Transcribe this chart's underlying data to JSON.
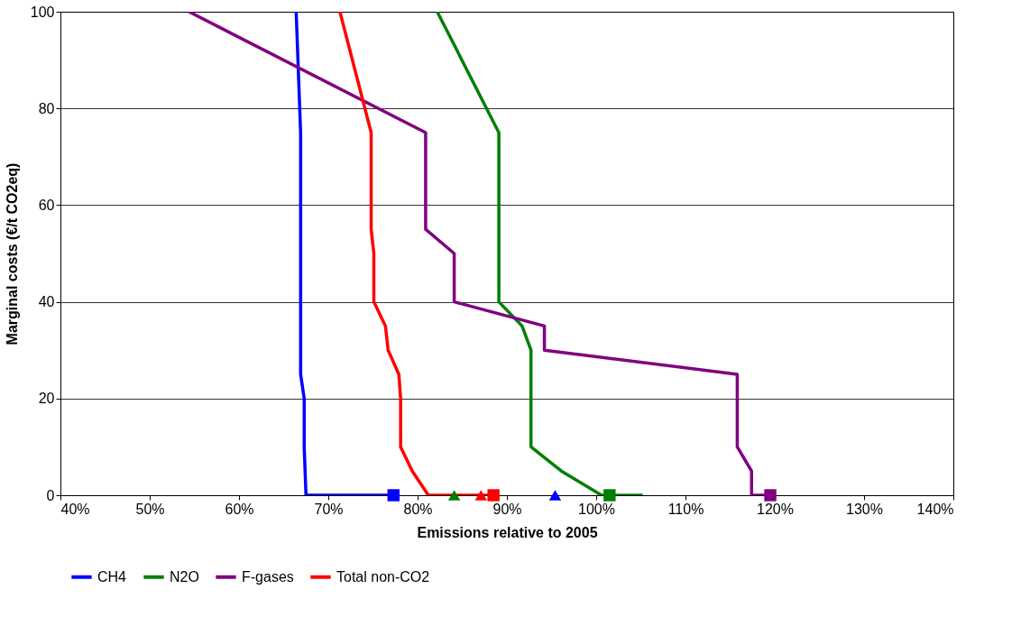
{
  "chart_data": {
    "type": "line",
    "xlabel": "Emissions relative to 2005",
    "ylabel": "Marginal costs (€/t CO2eq)",
    "xlim": [
      40,
      140
    ],
    "xticks": [
      {
        "value": 40,
        "label": "40%"
      },
      {
        "value": 50,
        "label": "50%"
      },
      {
        "value": 60,
        "label": "60%"
      },
      {
        "value": 70,
        "label": "70%"
      },
      {
        "value": 80,
        "label": "80%"
      },
      {
        "value": 90,
        "label": "90%"
      },
      {
        "value": 100,
        "label": "100%"
      },
      {
        "value": 110,
        "label": "110%"
      },
      {
        "value": 120,
        "label": "120%"
      },
      {
        "value": 130,
        "label": "130%"
      },
      {
        "value": 140,
        "label": "140%"
      }
    ],
    "ylim": [
      0,
      100
    ],
    "yticks": [
      0,
      20,
      40,
      60,
      80,
      100
    ],
    "grid": "y",
    "legend": "bottom",
    "marker": "none",
    "series": [
      {
        "name": "CH4",
        "color": "#0000ff",
        "x": [
          66.4,
          66.9,
          66.9,
          67.3,
          67.3,
          67.5,
          77.3
        ],
        "values": [
          100,
          75,
          25,
          20,
          10,
          0,
          0
        ]
      },
      {
        "name": "N2O",
        "color": "#008000",
        "x": [
          82.2,
          89.1,
          89.1,
          91.7,
          92.7,
          92.7,
          96.1,
          100.6,
          105.2
        ],
        "values": [
          100,
          75,
          40,
          35,
          30,
          10,
          5,
          0,
          0
        ]
      },
      {
        "name": "F-gases",
        "color": "#800080",
        "x": [
          54.4,
          80.9,
          80.9,
          84.1,
          84.1,
          94.2,
          94.2,
          115.8,
          115.8,
          117.4,
          117.4,
          119.5
        ],
        "values": [
          100,
          75,
          55,
          50,
          40,
          35,
          30,
          25,
          10,
          5,
          0,
          0
        ]
      },
      {
        "name": "Total non-CO2",
        "color": "#ff0000",
        "x": [
          71.3,
          74.8,
          74.8,
          75.1,
          75.1,
          76.4,
          76.7,
          77.9,
          78.1,
          78.1,
          79.4,
          81.2,
          88.5
        ],
        "values": [
          100,
          75,
          55,
          50,
          40,
          35,
          30,
          25,
          20,
          10,
          5,
          0,
          0
        ]
      },
      {
        "type": "scatter",
        "marker": "square",
        "color": "#0000ff",
        "x": [
          77.3
        ],
        "values": [
          0
        ]
      },
      {
        "type": "scatter",
        "marker": "triangle",
        "color": "#0000ff",
        "x": [
          95.4
        ],
        "values": [
          0
        ]
      },
      {
        "type": "scatter",
        "marker": "square",
        "color": "#008000",
        "x": [
          101.5
        ],
        "values": [
          0
        ]
      },
      {
        "type": "scatter",
        "marker": "triangle",
        "color": "#008000",
        "x": [
          84.1
        ],
        "values": [
          0
        ]
      },
      {
        "type": "scatter",
        "marker": "square",
        "color": "#800080",
        "x": [
          119.5
        ],
        "values": [
          0
        ]
      },
      {
        "type": "scatter",
        "marker": "square",
        "color": "#ff0000",
        "x": [
          88.5
        ],
        "values": [
          0
        ]
      },
      {
        "type": "scatter",
        "marker": "triangle",
        "color": "#ff0000",
        "x": [
          87.1
        ],
        "values": [
          0
        ]
      }
    ]
  }
}
